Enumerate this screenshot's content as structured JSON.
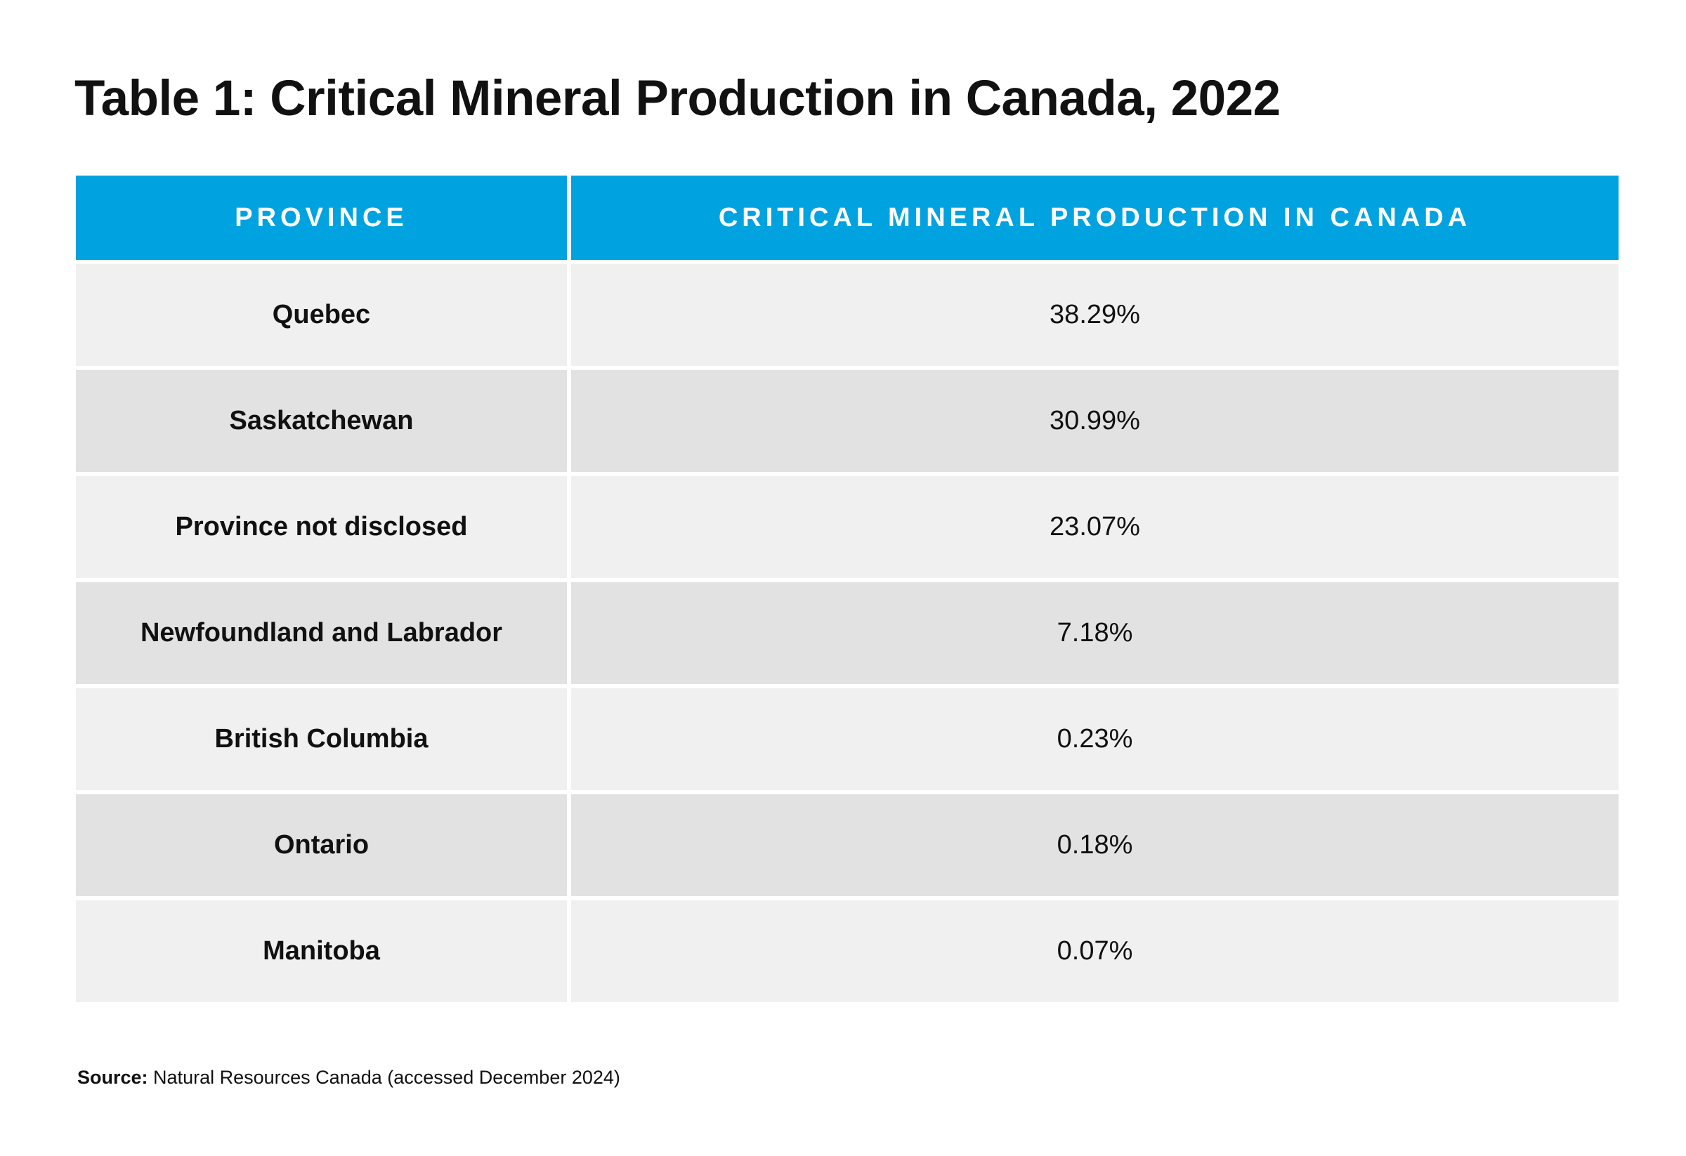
{
  "title": {
    "prefix": "Table 1:",
    "text": "Critical Mineral Production in Canada, 2022"
  },
  "table": {
    "headers": [
      "PROVINCE",
      "CRITICAL MINERAL PRODUCTION IN CANADA"
    ],
    "rows": [
      {
        "province": "Quebec",
        "value": "38.29%"
      },
      {
        "province": "Saskatchewan",
        "value": "30.99%"
      },
      {
        "province": "Province not disclosed",
        "value": "23.07%"
      },
      {
        "province": "Newfoundland and Labrador",
        "value": "7.18%"
      },
      {
        "province": "British Columbia",
        "value": "0.23%"
      },
      {
        "province": "Ontario",
        "value": "0.18%"
      },
      {
        "province": "Manitoba",
        "value": "0.07%"
      }
    ]
  },
  "source": {
    "label": "Source:",
    "text": "Natural Resources Canada (accessed December 2024)"
  },
  "colors": {
    "header_bg": "#00a3e0",
    "row_light": "#f0f0f0",
    "row_dark": "#e2e2e2"
  }
}
